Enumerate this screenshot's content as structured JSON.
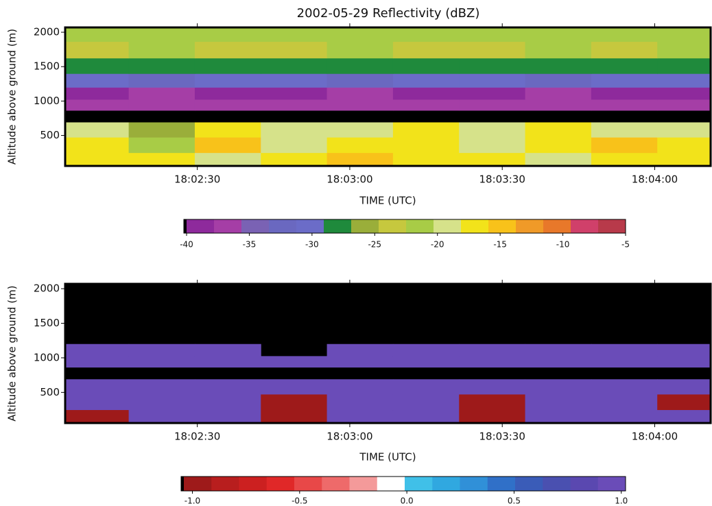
{
  "chart_data": [
    {
      "type": "heatmap",
      "title": "2002-05-29 Reflectivity (dBZ)",
      "xlabel": "TIME (UTC)",
      "ylabel": "Altitude above ground (m)",
      "x": [
        64930,
        64943,
        64956,
        64969,
        64982,
        64995,
        65008,
        65021,
        65034,
        65047
      ],
      "y": [
        150,
        350,
        600,
        780,
        950,
        1100,
        1300,
        1500,
        1750,
        1980
      ],
      "z": [
        [
          -17,
          -16,
          -19,
          -18,
          -15,
          -18,
          -17,
          -19,
          -16,
          -18
        ],
        [
          -18,
          -21,
          -15,
          -19,
          -18,
          -16,
          -19,
          -17,
          -15,
          -18
        ],
        [
          -19,
          -26,
          -18,
          -20,
          -19,
          -16,
          -19,
          -18,
          -19,
          -20
        ],
        [
          null,
          null,
          null,
          null,
          null,
          null,
          null,
          null,
          null,
          null
        ],
        [
          -36,
          -37,
          -36,
          -37,
          -36,
          -36,
          -37,
          -36,
          -37,
          -36
        ],
        [
          -38,
          -37,
          -38,
          -38,
          -37,
          -38,
          -38,
          -37,
          -38,
          -38
        ],
        [
          -31,
          -32,
          -31,
          -31,
          -32,
          -31,
          -31,
          -32,
          -31,
          -31
        ],
        [
          -27,
          -28,
          -27,
          -27,
          -28,
          -27,
          -27,
          -28,
          -27,
          -27
        ],
        [
          -23,
          -22,
          -24,
          -23,
          -22,
          -23,
          -24,
          -22,
          -23,
          -22
        ],
        [
          -21,
          -22,
          -21,
          -22,
          -21,
          -22,
          -21,
          -21,
          -22,
          -21
        ]
      ],
      "xlim": [
        64924,
        65051
      ],
      "ylim": [
        57,
        2070
      ],
      "xticks": [
        {
          "value": 64950,
          "label": "18:02:30"
        },
        {
          "value": 64980,
          "label": "18:03:00"
        },
        {
          "value": 65010,
          "label": "18:03:30"
        },
        {
          "value": 65040,
          "label": "18:04:00"
        }
      ],
      "yticks": [
        500,
        1000,
        1500,
        2000
      ],
      "colorbar": {
        "lim": [
          -40,
          -5
        ],
        "ticks": [
          -40,
          -35,
          -30,
          -25,
          -20,
          -15,
          -10,
          -5
        ],
        "colors": [
          "#8e2a9c",
          "#a53ea6",
          "#7a62b4",
          "#6a68c0",
          "#6b6cc8",
          "#1f8a3c",
          "#9aae3a",
          "#c6c83e",
          "#a8cc46",
          "#d6e28a",
          "#f2e31a",
          "#f8c21a",
          "#f09a28",
          "#e8782a",
          "#d0406a",
          "#b83a4a"
        ]
      }
    },
    {
      "type": "heatmap",
      "xlabel": "TIME (UTC)",
      "ylabel": "Altitude above ground (m)",
      "x": [
        64930,
        64943,
        64956,
        64969,
        64982,
        64995,
        65008,
        65021,
        65034,
        65047
      ],
      "y": [
        150,
        350,
        600,
        780,
        950,
        1100,
        1300,
        1500,
        1750,
        1980
      ],
      "z": [
        [
          -1,
          1,
          1,
          -1,
          1,
          1,
          -1,
          1,
          1,
          1
        ],
        [
          1,
          1,
          1,
          -1,
          1,
          1,
          -1,
          1,
          1,
          -1
        ],
        [
          1,
          1,
          1,
          1,
          1,
          1,
          1,
          1,
          1,
          1
        ],
        [
          null,
          null,
          null,
          null,
          null,
          null,
          null,
          null,
          null,
          null
        ],
        [
          1,
          1,
          1,
          1,
          1,
          1,
          1,
          1,
          1,
          1
        ],
        [
          1,
          1,
          1,
          null,
          1,
          1,
          1,
          1,
          1,
          1
        ],
        [
          null,
          null,
          null,
          null,
          null,
          null,
          null,
          null,
          null,
          null
        ],
        [
          null,
          null,
          null,
          null,
          null,
          null,
          null,
          null,
          null,
          null
        ],
        [
          null,
          null,
          null,
          null,
          null,
          null,
          null,
          null,
          null,
          null
        ],
        [
          null,
          null,
          null,
          null,
          null,
          null,
          null,
          null,
          null,
          null
        ]
      ],
      "xlim": [
        64924,
        65051
      ],
      "ylim": [
        57,
        2070
      ],
      "xticks": [
        {
          "value": 64950,
          "label": "18:02:30"
        },
        {
          "value": 64980,
          "label": "18:03:00"
        },
        {
          "value": 65010,
          "label": "18:03:30"
        },
        {
          "value": 65040,
          "label": "18:04:00"
        }
      ],
      "yticks": [
        500,
        1000,
        1500,
        2000
      ],
      "colorbar": {
        "lim": [
          -1.04,
          1.02
        ],
        "ticks": [
          {
            "value": -1,
            "label": "-1.0"
          },
          {
            "value": -0.5,
            "label": "-0.5"
          },
          {
            "value": 0,
            "label": "0.0"
          },
          {
            "value": 0.5,
            "label": "0.5"
          },
          {
            "value": 1,
            "label": "1.0"
          }
        ],
        "colors": [
          "#9e1a1a",
          "#b81e1e",
          "#cc2020",
          "#e02828",
          "#e84848",
          "#ee6a6a",
          "#f49a9a",
          "#ffffff",
          "#40c0e8",
          "#30a8e0",
          "#3090d8",
          "#3070c8",
          "#3a5cb8",
          "#4a50b0",
          "#5a48b0",
          "#6a4cb8"
        ]
      }
    }
  ]
}
